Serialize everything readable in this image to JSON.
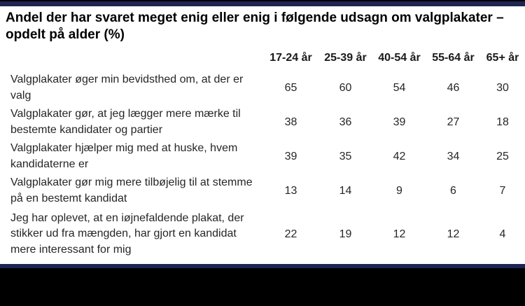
{
  "title": "Andel der har svaret meget enig eller enig i følgende udsagn om valgplakater – opdelt på alder (%)",
  "table": {
    "columns": [
      "17-24 år",
      "25-39 år",
      "40-54 år",
      "55-64 år",
      "65+ år"
    ],
    "rows": [
      {
        "label": "Valgplakater øger min bevidsthed om, at der er valg",
        "values": [
          65,
          60,
          54,
          46,
          30
        ]
      },
      {
        "label": "Valgplakater gør, at jeg lægger mere mærke til bestemte kandidater og partier",
        "values": [
          38,
          36,
          39,
          27,
          18
        ]
      },
      {
        "label": "Valgplakater hjælper mig med at huske, hvem kandidaterne er",
        "values": [
          39,
          35,
          42,
          34,
          25
        ]
      },
      {
        "label": "Valgplakater gør mig mere tilbøjelig til at stemme på en bestemt kandidat",
        "values": [
          13,
          14,
          9,
          6,
          7
        ]
      },
      {
        "label": "Jeg har oplevet, at en iøjnefaldende plakat, der stikker ud fra mængden, har gjort en kandidat mere interessant for mig",
        "values": [
          22,
          19,
          12,
          12,
          4
        ]
      }
    ]
  },
  "colors": {
    "accent_navy": "#1e2553",
    "bar_black": "#000000"
  },
  "chart_data": {
    "type": "table",
    "title": "Andel der har svaret meget enig eller enig i følgende udsagn om valgplakater – opdelt på alder (%)",
    "unit": "%",
    "categories": [
      "17-24 år",
      "25-39 år",
      "40-54 år",
      "55-64 år",
      "65+ år"
    ],
    "series": [
      {
        "name": "Valgplakater øger min bevidsthed om, at der er valg",
        "values": [
          65,
          60,
          54,
          46,
          30
        ]
      },
      {
        "name": "Valgplakater gør, at jeg lægger mere mærke til bestemte kandidater og partier",
        "values": [
          38,
          36,
          39,
          27,
          18
        ]
      },
      {
        "name": "Valgplakater hjælper mig med at huske, hvem kandidaterne er",
        "values": [
          39,
          35,
          42,
          34,
          25
        ]
      },
      {
        "name": "Valgplakater gør mig mere tilbøjelig til at stemme på en bestemt kandidat",
        "values": [
          13,
          14,
          9,
          6,
          7
        ]
      },
      {
        "name": "Jeg har oplevet, at en iøjnefaldende plakat, der stikker ud fra mængden, har gjort en kandidat mere interessant for mig",
        "values": [
          22,
          19,
          12,
          12,
          4
        ]
      }
    ]
  }
}
